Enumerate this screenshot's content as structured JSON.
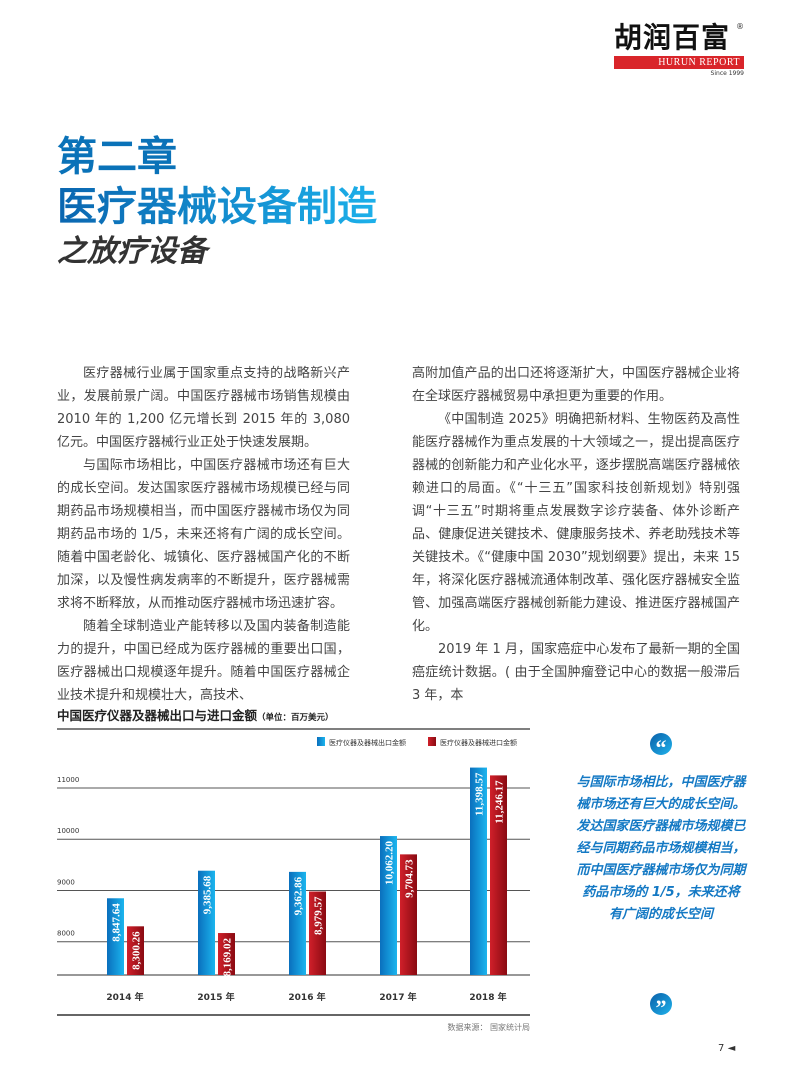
{
  "header": {
    "logo_cn": "胡润百富",
    "logo_en": "HURUN REPORT",
    "logo_since": "Since 1999",
    "logo_reg": "®"
  },
  "heading": {
    "chapter": "第二章",
    "title": "医疗器械设备制造",
    "subtitle": "之放疗设备"
  },
  "body": {
    "left": [
      "医疗器械行业属于国家重点支持的战略新兴产业，发展前景广阔。中国医疗器械市场销售规模由 2010 年的 1,200 亿元增长到 2015 年的 3,080 亿元。中国医疗器械行业正处于快速发展期。",
      "与国际市场相比，中国医疗器械市场还有巨大的成长空间。发达国家医疗器械市场规模已经与同期药品市场规模相当，而中国医疗器械市场仅为同期药品市场的 1/5，未来还将有广阔的成长空间。随着中国老龄化、城镇化、医疗器械国产化的不断加深，以及慢性病发病率的不断提升，医疗器械需求将不断释放，从而推动医疗器械市场迅速扩容。",
      "随着全球制造业产能转移以及国内装备制造能力的提升，中国已经成为医疗器械的重要出口国，医疗器械出口规模逐年提升。随着中国医疗器械企业技术提升和规模壮大，高技术、"
    ],
    "right_continuation": "高附加值产品的出口还将逐渐扩大，中国医疗器械企业将在全球医疗器械贸易中承担更为重要的作用。",
    "right": [
      "《中国制造 2025》明确把新材料、生物医药及高性能医疗器械作为重点发展的十大领域之一，提出提高医疗器械的创新能力和产业化水平，逐步摆脱高端医疗器械依赖进口的局面。《“十三五”国家科技创新规划》特别强调“十三五”时期将重点发展数字诊疗装备、体外诊断产品、健康促进关键技术、健康服务技术、养老助残技术等关键技术。《“健康中国 2030”规划纲要》提出，未来 15 年，将深化医疗器械流通体制改革、强化医疗器械安全监管、加强高端医疗器械创新能力建设、推进医疗器械国产化。",
      "2019 年 1 月，国家癌症中心发布了最新一期的全国癌症统计数据。( 由于全国肿瘤登记中心的数据一般滞后 3 年，本"
    ]
  },
  "quote": {
    "open_icon": "left-double-quote",
    "close_icon": "right-double-quote",
    "text": "与国际市场相比，中国医疗器械市场还有巨大的成长空间。发达国家医疗器械市场规模已经与同期药品市场规模相当，而中国医疗器械市场仅为同期药品市场的 1/5，未来还将有广阔的成长空间",
    "color": "#1479c4"
  },
  "chart_data": {
    "type": "bar",
    "title": "中国医疗仪器及器械出口与进口金额",
    "unit_note": "（单位：百万美元）",
    "categories": [
      "2014 年",
      "2015 年",
      "2016 年",
      "2017 年",
      "2018 年"
    ],
    "series": [
      {
        "name": "医疗仪器及器械出口金额",
        "color": "#0a7fc8",
        "values": [
          8847.64,
          9385.68,
          9362.86,
          10062.2,
          11398.57
        ],
        "labels": [
          "8,847.64",
          "9,385.68",
          "9,362.86",
          "10,062.20",
          "11,398.57"
        ]
      },
      {
        "name": "医疗仪器及器械进口金额",
        "color": "#b5121b",
        "values": [
          8300.26,
          8169.02,
          8979.57,
          9704.73,
          11246.17
        ],
        "labels": [
          "8,300.26",
          "8,169.02",
          "8,979.57",
          "9,704.73",
          "11,246.17"
        ]
      }
    ],
    "yticks": [
      "8000",
      "9000",
      "10000",
      "11000"
    ],
    "ylim": [
      7350,
      11600
    ],
    "grid": true,
    "legend": "top-right",
    "source": "数据来源： 国家统计局"
  },
  "footer": {
    "page_number": "7",
    "arrow": "◄"
  }
}
